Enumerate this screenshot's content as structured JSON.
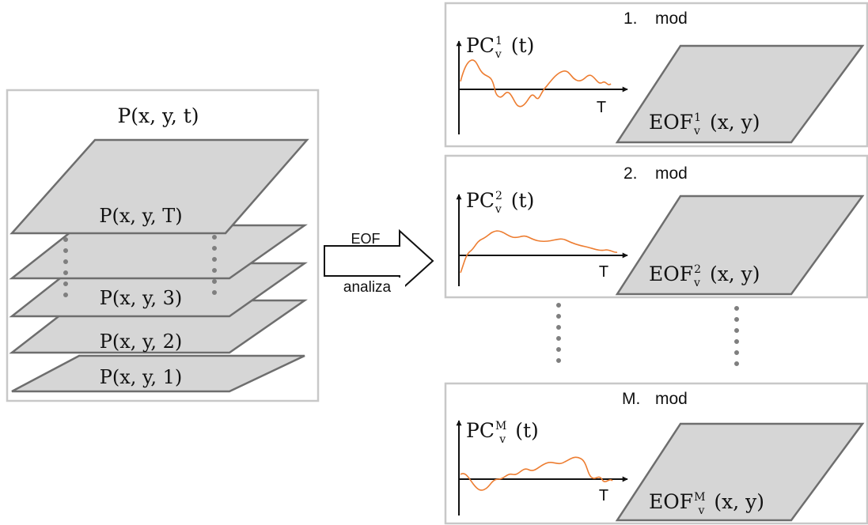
{
  "colors": {
    "plane_fill": "#d6d6d6",
    "plane_stroke": "#6e6e6e",
    "box_border": "#c8c8c8",
    "signal_line": "#ed7d31",
    "dots": "#7f7f7f"
  },
  "input": {
    "title": "P(x, y, t)",
    "layers": [
      "P(x, y, T)",
      "P(x, y, 3)",
      "P(x, y, 2)",
      "P(x, y, 1)"
    ]
  },
  "arrow": {
    "top_label": "EOF",
    "bottom_label": "analiza"
  },
  "modes": [
    {
      "number": "1.",
      "mod_label": "mod",
      "pc_base": "PC",
      "pc_sup": "1",
      "pc_sub": "v",
      "pc_arg": "(t)",
      "eof_base": "EOF",
      "eof_sup": "1",
      "eof_sub": "v",
      "eof_arg": "(x, y)",
      "axis_end_label": "T"
    },
    {
      "number": "2.",
      "mod_label": "mod",
      "pc_base": "PC",
      "pc_sup": "2",
      "pc_sub": "v",
      "pc_arg": "(t)",
      "eof_base": "EOF",
      "eof_sup": "2",
      "eof_sub": "v",
      "eof_arg": "(x, y)",
      "axis_end_label": "T"
    },
    {
      "number": "M.",
      "mod_label": "mod",
      "pc_base": "PC",
      "pc_sup": "M",
      "pc_sub": "v",
      "pc_arg": "(t)",
      "eof_base": "EOF",
      "eof_sup": "M",
      "eof_sub": "v",
      "eof_arg": "(x, y)",
      "axis_end_label": "T"
    }
  ]
}
